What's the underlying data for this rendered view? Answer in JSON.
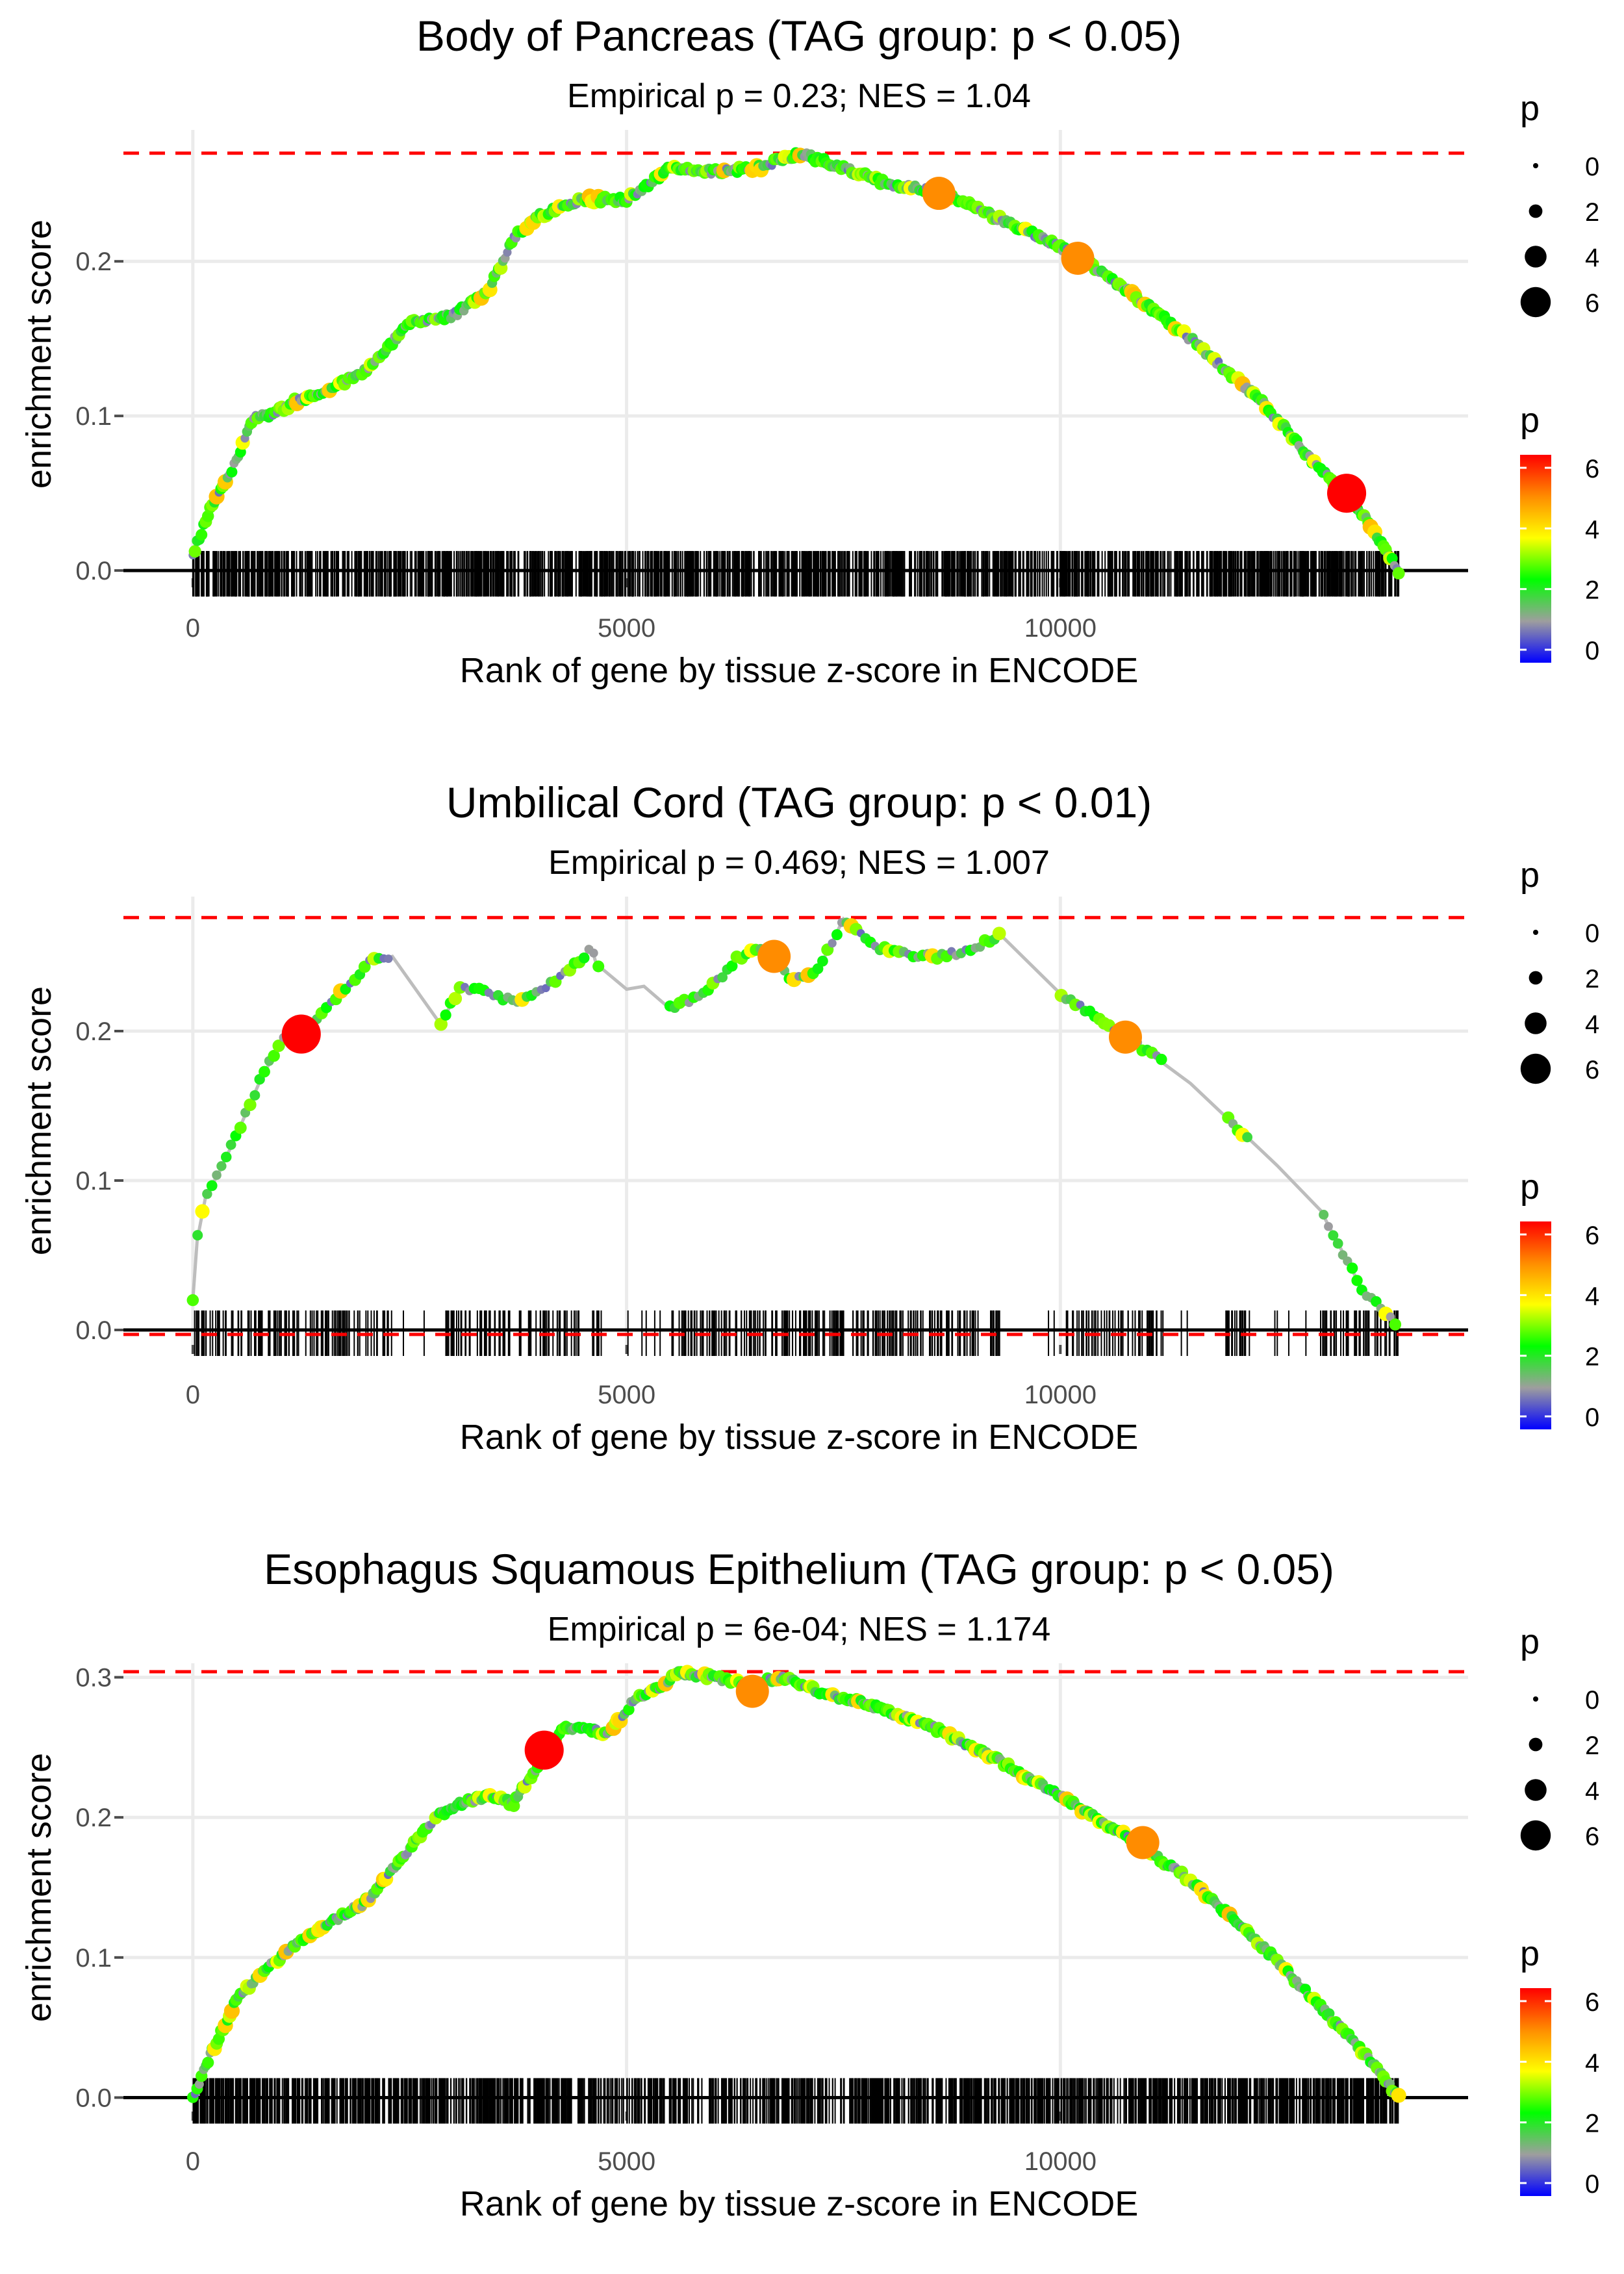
{
  "legend": {
    "size_title": "p",
    "color_title": "p",
    "size_labels": [
      "0",
      "2",
      "4",
      "6"
    ],
    "color_labels": [
      "6",
      "4",
      "2",
      "0"
    ],
    "gradient": [
      "#ff0000",
      "#ff8c00",
      "#ffff00",
      "#00ff00",
      "#9e9e9e",
      "#0000ff"
    ]
  },
  "colors": {
    "cutoff": "#ff0000",
    "curve": "#bdbdbd",
    "grid": "#ebebeb",
    "axis": "#000000",
    "tick_label": "#4d4d4d"
  },
  "chart_data": [
    {
      "type": "line",
      "title": "Body of Pancreas (TAG group: p < 0.05)",
      "subtitle": "Empirical p = 0.23; NES = 1.04",
      "xlabel": "Rank of gene by tissue z-score in ENCODE",
      "ylabel": "enrichment score",
      "xlim": [
        -800,
        14700
      ],
      "ylim": [
        -0.005,
        0.285
      ],
      "x_ticks": [
        0,
        5000,
        10000
      ],
      "x_tick_labels": [
        "0",
        "5000",
        "10000"
      ],
      "y_ticks": [
        0,
        0.1,
        0.2
      ],
      "y_tick_labels": [
        "0.0",
        "0.1",
        "0.2"
      ],
      "max_es": 0.27,
      "min_es": null,
      "curve": {
        "x": [
          0,
          200,
          500,
          700,
          900,
          1200,
          1500,
          2000,
          2500,
          3000,
          3400,
          3700,
          4000,
          4500,
          5000,
          5500,
          6000,
          6500,
          7000,
          7500,
          8000,
          8600,
          9200,
          9800,
          10300,
          10800,
          11500,
          12300,
          13000,
          13500,
          13900
        ],
        "y": [
          0.01,
          0.04,
          0.07,
          0.1,
          0.1,
          0.11,
          0.115,
          0.13,
          0.16,
          0.165,
          0.18,
          0.215,
          0.23,
          0.24,
          0.24,
          0.26,
          0.258,
          0.26,
          0.27,
          0.26,
          0.25,
          0.245,
          0.23,
          0.215,
          0.2,
          0.18,
          0.15,
          0.11,
          0.065,
          0.035,
          0.0
        ]
      },
      "highlights": [
        {
          "x": 8600,
          "y": 0.244,
          "p": 5
        },
        {
          "x": 10200,
          "y": 0.202,
          "p": 5
        },
        {
          "x": 13300,
          "y": 0.05,
          "p": 6.3
        }
      ]
    },
    {
      "type": "line",
      "title": "Umbilical Cord (TAG group: p < 0.01)",
      "subtitle": "Empirical p = 0.469; NES = 1.007",
      "xlabel": "Rank of gene by tissue z-score in ENCODE",
      "ylabel": "enrichment score",
      "xlim": [
        -800,
        14700
      ],
      "ylim": [
        -0.01,
        0.29
      ],
      "x_ticks": [
        0,
        5000,
        10000
      ],
      "x_tick_labels": [
        "0",
        "5000",
        "10000"
      ],
      "y_ticks": [
        0,
        0.1,
        0.2
      ],
      "y_tick_labels": [
        "0.0",
        "0.1",
        "0.2"
      ],
      "max_es": 0.276,
      "min_es": -0.003,
      "curve": {
        "x": [
          0,
          50,
          150,
          300,
          500,
          800,
          1100,
          1300,
          1500,
          1800,
          2000,
          2300,
          2850,
          3100,
          3400,
          3700,
          4100,
          4600,
          4650,
          5000,
          5200,
          5500,
          5900,
          6300,
          6600,
          6900,
          7200,
          7500,
          7600,
          7900,
          8200,
          8600,
          9000,
          9300,
          10000,
          10500,
          10800,
          11500,
          12500,
          13000,
          13500,
          13900
        ],
        "y": [
          0.02,
          0.06,
          0.09,
          0.105,
          0.13,
          0.17,
          0.2,
          0.197,
          0.215,
          0.23,
          0.245,
          0.25,
          0.205,
          0.23,
          0.225,
          0.22,
          0.23,
          0.255,
          0.245,
          0.228,
          0.23,
          0.215,
          0.225,
          0.25,
          0.255,
          0.235,
          0.24,
          0.275,
          0.27,
          0.255,
          0.252,
          0.25,
          0.255,
          0.265,
          0.225,
          0.205,
          0.195,
          0.165,
          0.11,
          0.08,
          0.025,
          0.003
        ]
      },
      "highlights": [
        {
          "x": 1250,
          "y": 0.198,
          "p": 6.3
        },
        {
          "x": 6700,
          "y": 0.25,
          "p": 5
        },
        {
          "x": 10750,
          "y": 0.196,
          "p": 5
        }
      ]
    },
    {
      "type": "line",
      "title": "Esophagus Squamous Epithelium (TAG group: p < 0.05)",
      "subtitle": "Empirical p = 6e-04; NES = 1.174",
      "xlabel": "Rank of gene by tissue z-score in ENCODE",
      "ylabel": "enrichment score",
      "xlim": [
        -800,
        14700
      ],
      "ylim": [
        -0.01,
        0.31
      ],
      "x_ticks": [
        0,
        5000,
        10000
      ],
      "x_tick_labels": [
        "0",
        "5000",
        "10000"
      ],
      "y_ticks": [
        0,
        0.1,
        0.2,
        0.3
      ],
      "y_tick_labels": [
        "0.0",
        "0.1",
        "0.2",
        "0.3"
      ],
      "max_es": 0.304,
      "min_es": null,
      "curve": {
        "x": [
          0,
          200,
          500,
          800,
          1100,
          1300,
          1600,
          2000,
          2400,
          2800,
          3100,
          3400,
          3700,
          4000,
          4300,
          4800,
          5100,
          5300,
          5600,
          6000,
          6400,
          6800,
          7200,
          7800,
          8500,
          9300,
          10000,
          10800,
          11500,
          12300,
          13000,
          13600,
          13900
        ],
        "y": [
          0.0,
          0.03,
          0.07,
          0.09,
          0.105,
          0.115,
          0.125,
          0.14,
          0.17,
          0.2,
          0.21,
          0.215,
          0.21,
          0.24,
          0.265,
          0.26,
          0.285,
          0.29,
          0.303,
          0.3,
          0.295,
          0.3,
          0.29,
          0.28,
          0.265,
          0.24,
          0.215,
          0.185,
          0.155,
          0.11,
          0.065,
          0.025,
          0.0
        ]
      },
      "highlights": [
        {
          "x": 4050,
          "y": 0.248,
          "p": 6.3
        },
        {
          "x": 6450,
          "y": 0.29,
          "p": 5
        },
        {
          "x": 10950,
          "y": 0.182,
          "p": 5
        }
      ]
    }
  ]
}
